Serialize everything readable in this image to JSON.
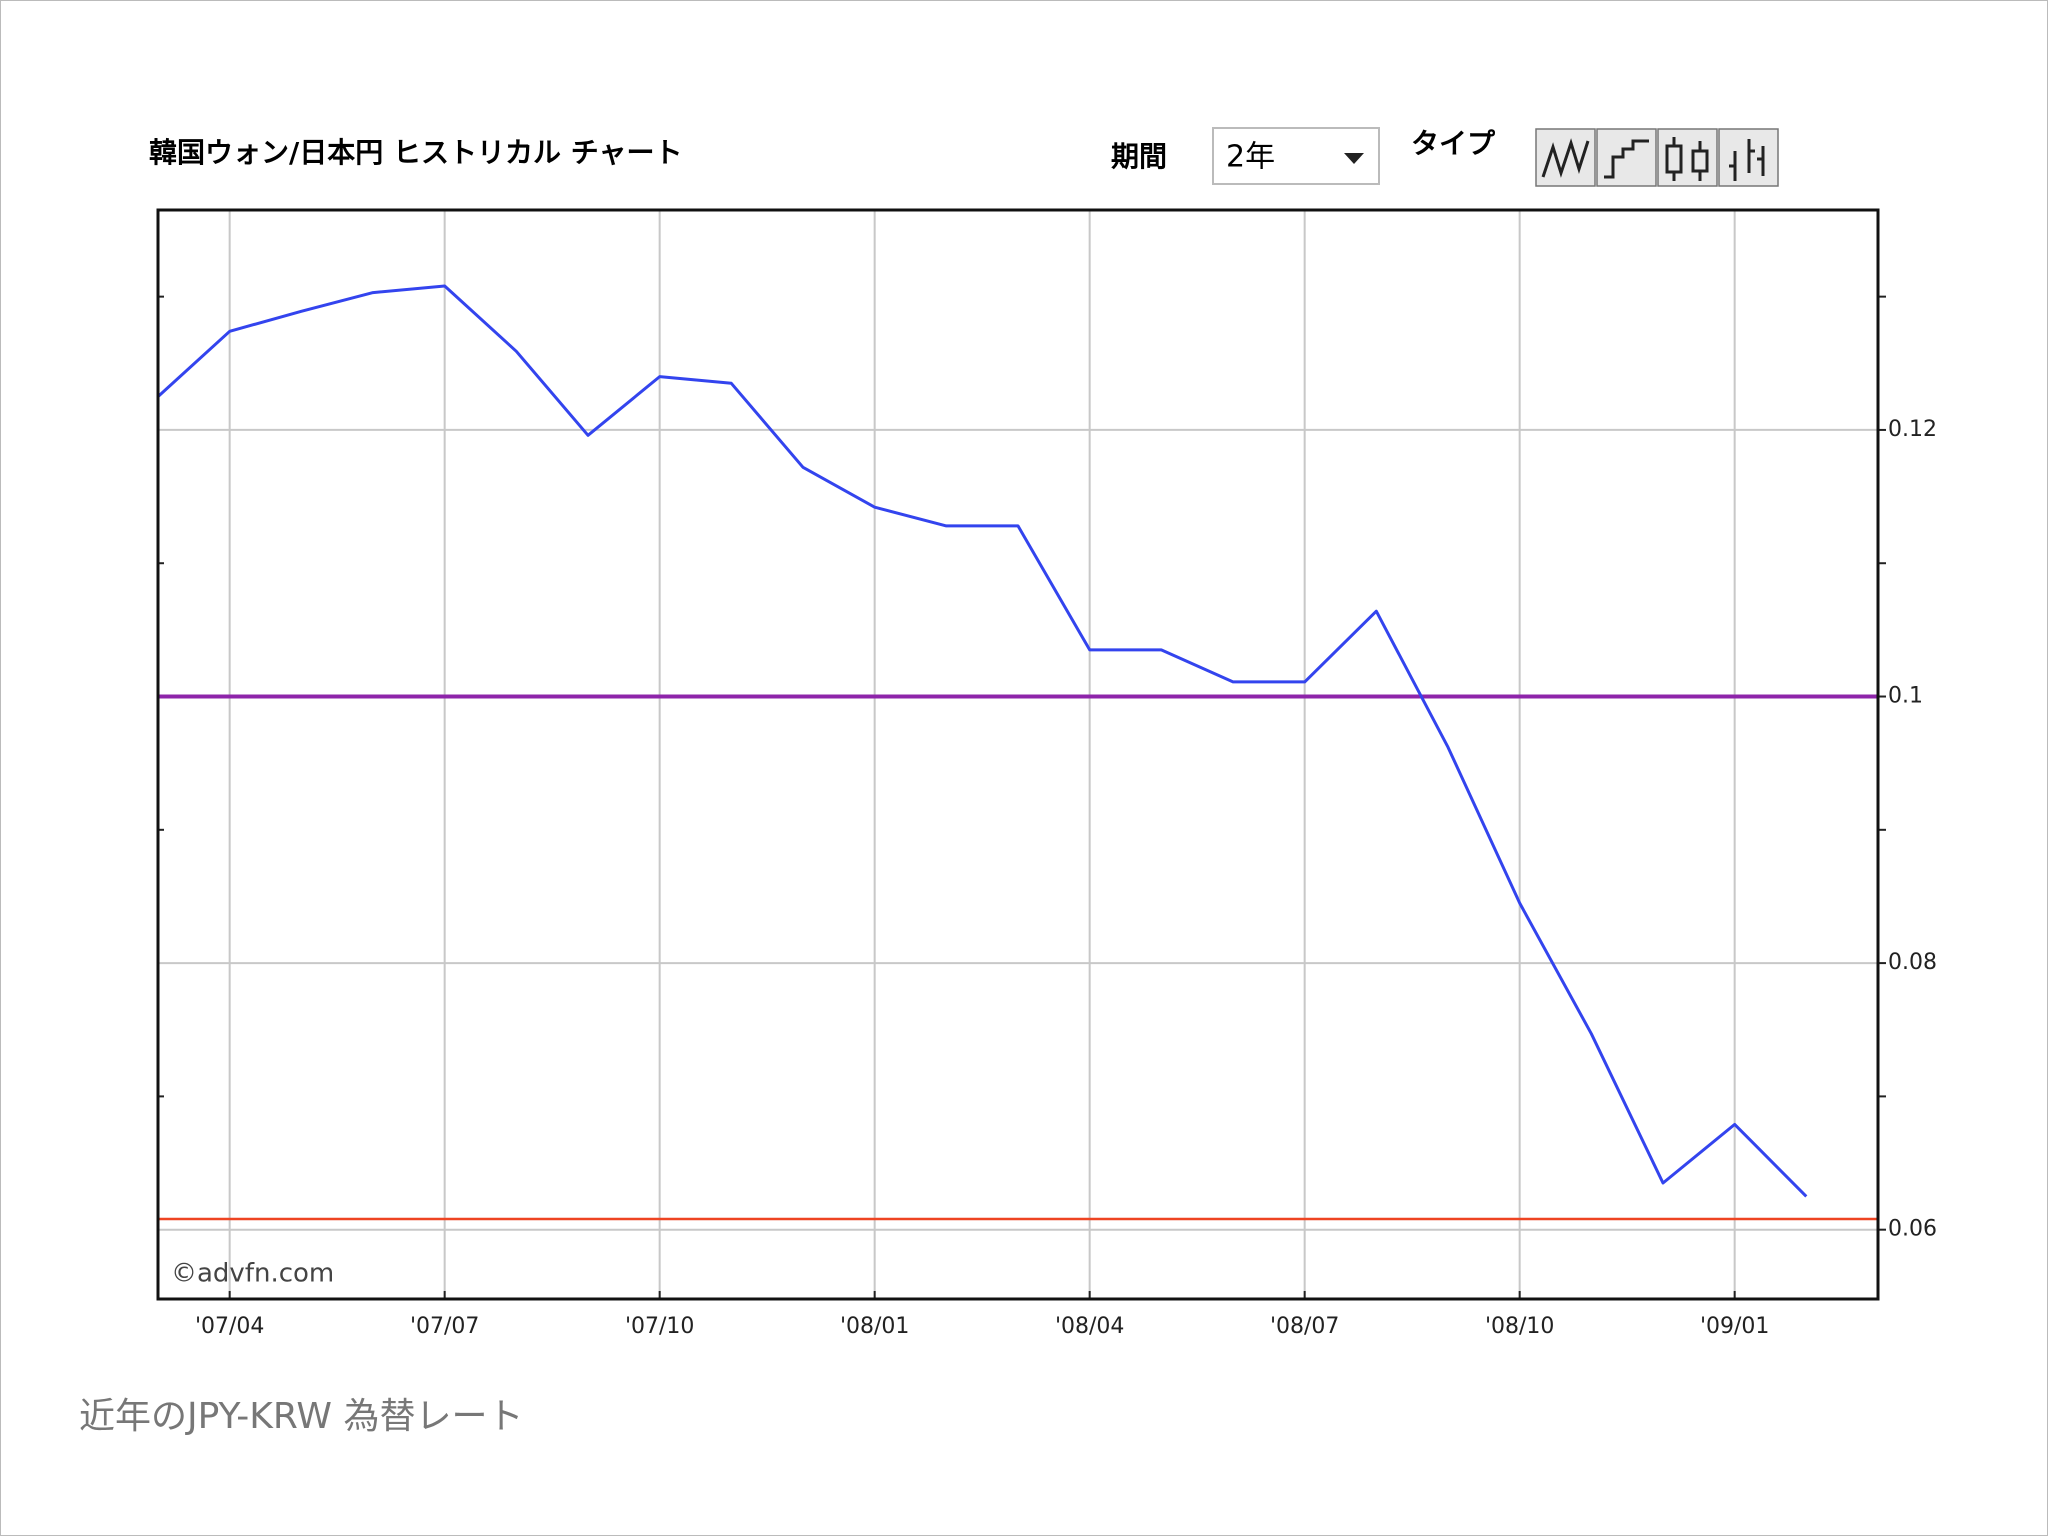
{
  "chart_data": {
    "type": "line",
    "title": "韓国ウォン/日本円 ヒストリカル チャート",
    "x": [
      "2007-03",
      "2007-04",
      "2007-05",
      "2007-06",
      "2007-07",
      "2007-08",
      "2007-09",
      "2007-10",
      "2007-11",
      "2007-12",
      "2008-01",
      "2008-02",
      "2008-03",
      "2008-04",
      "2008-05",
      "2008-06",
      "2008-07",
      "2008-08",
      "2008-09",
      "2008-10",
      "2008-11",
      "2008-12",
      "2009-01",
      "2009-02"
    ],
    "values": [
      0.1225,
      0.1274,
      0.1289,
      0.1303,
      0.1308,
      0.1259,
      0.1196,
      0.124,
      0.1235,
      0.1172,
      0.1142,
      0.1128,
      0.1128,
      0.1035,
      0.1035,
      0.1011,
      0.1011,
      0.1064,
      0.0962,
      0.0845,
      0.0747,
      0.0635,
      0.0679,
      0.0625
    ],
    "color": "#3344ee",
    "xlim": [
      "2007-03",
      "2009-03"
    ],
    "xticks": [
      {
        "value": "2007-04",
        "label": "'07/04"
      },
      {
        "value": "2007-07",
        "label": "'07/07"
      },
      {
        "value": "2007-10",
        "label": "'07/10"
      },
      {
        "value": "2008-01",
        "label": "'08/01"
      },
      {
        "value": "2008-04",
        "label": "'08/04"
      },
      {
        "value": "2008-07",
        "label": "'08/07"
      },
      {
        "value": "2008-10",
        "label": "'08/10"
      },
      {
        "value": "2009-01",
        "label": "'09/01"
      }
    ],
    "ylim": [
      0.0548,
      0.1365
    ],
    "yticks": [
      0.06,
      0.08,
      0.1,
      0.12
    ],
    "minor_yticks": [
      0.07,
      0.09,
      0.11,
      0.13
    ],
    "reference_lines": [
      {
        "value": 0.1,
        "color": "#8e24aa"
      },
      {
        "value": 0.0608,
        "color": "#ee4422"
      }
    ],
    "grid": true,
    "watermark": "©advfn.com"
  },
  "controls": {
    "period_label": "期間",
    "period_value": "2年",
    "type_label": "タイプ"
  },
  "caption": "近年のJPY-KRW 為替レート"
}
